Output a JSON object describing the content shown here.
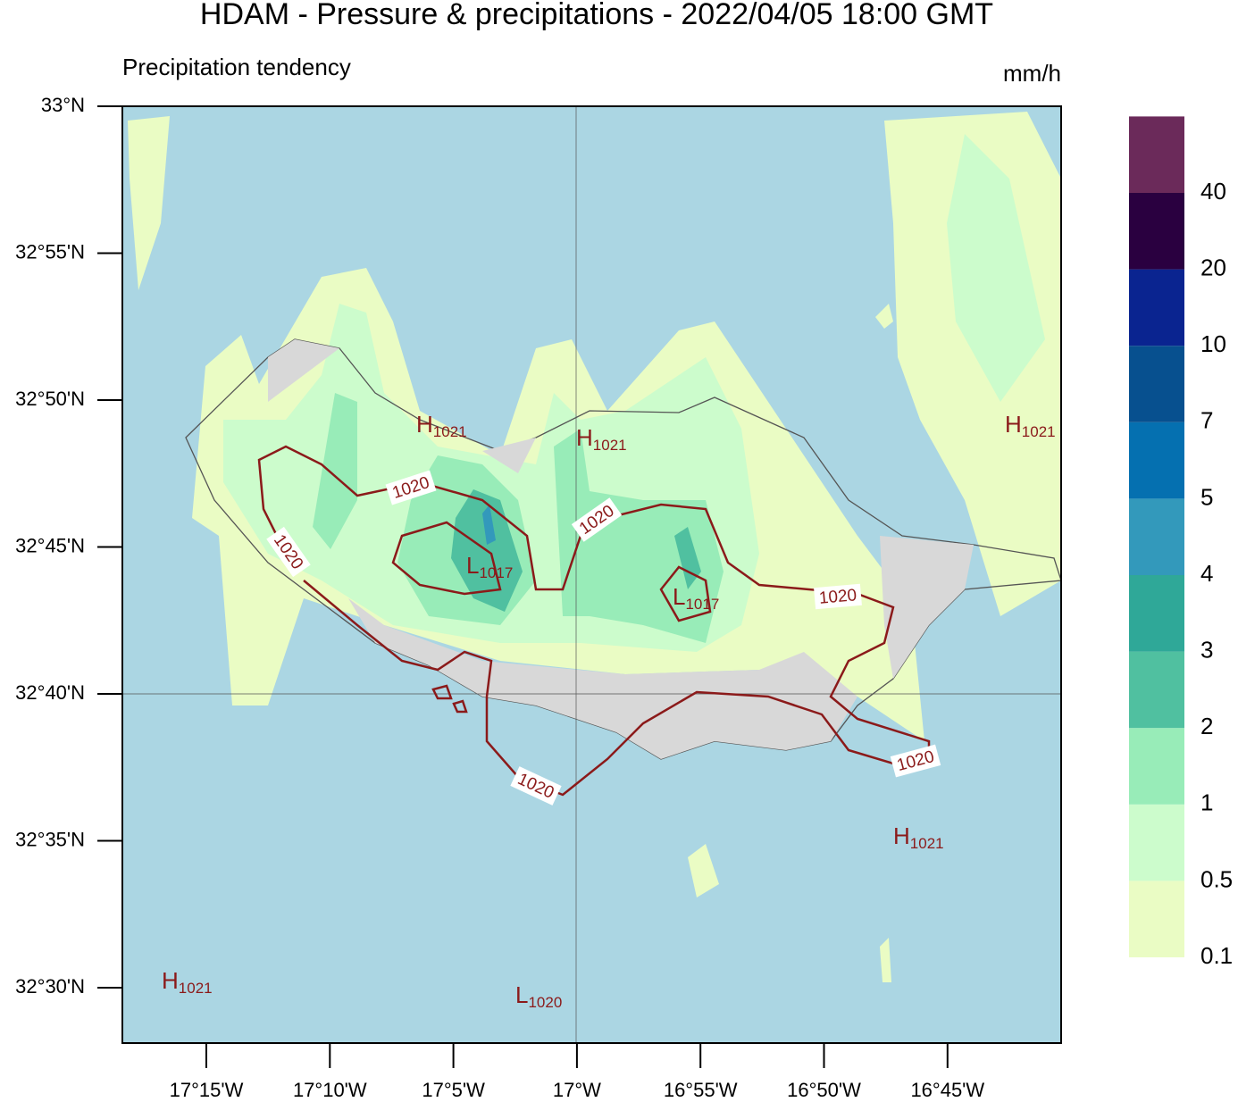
{
  "header": {
    "title": "HDAM - Pressure & precipitations  -  2022/04/05  18:00 GMT",
    "subtitle": "Precipitation tendency",
    "unit": "mm/h"
  },
  "axes": {
    "lat_labels": [
      "33°N",
      "32°55'N",
      "32°50'N",
      "32°45'N",
      "32°40'N",
      "32°35'N",
      "32°30'N"
    ],
    "lon_labels": [
      "17°15'W",
      "17°10'W",
      "17°5'W",
      "17°W",
      "16°55'W",
      "16°50'W",
      "16°45'W"
    ]
  },
  "colorbar": {
    "labels": [
      0.1,
      0.5,
      1,
      2,
      3,
      4,
      5,
      7,
      10,
      20,
      40
    ],
    "colors": [
      "#eafcc4",
      "#ccfccc",
      "#98ecb8",
      "#50c0a0",
      "#2fa898",
      "#3399bb",
      "#0570b0",
      "#07508f",
      "#0a2490",
      "#2a0040",
      "#6b2a5a"
    ]
  },
  "contour_labels": [
    "1020",
    "1020",
    "1020",
    "1020",
    "1020",
    "1020"
  ],
  "pressure_centers": [
    {
      "type": "H",
      "value": "1021"
    },
    {
      "type": "H",
      "value": "1021"
    },
    {
      "type": "H",
      "value": "1021"
    },
    {
      "type": "L",
      "value": "1017"
    },
    {
      "type": "L",
      "value": "1017"
    },
    {
      "type": "H",
      "value": "1021"
    },
    {
      "type": "H",
      "value": "1021"
    },
    {
      "type": "L",
      "value": "1020"
    }
  ]
}
